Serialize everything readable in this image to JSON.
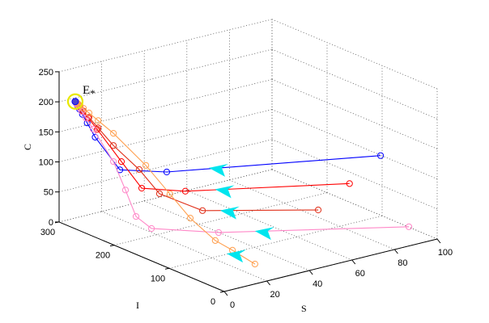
{
  "chart_data": {
    "type": "line3d",
    "title": "",
    "xlabel": "S",
    "ylabel": "I",
    "zlabel": "C",
    "xlim": [
      0,
      100
    ],
    "ylim": [
      0,
      300
    ],
    "zlim": [
      0,
      250
    ],
    "xticks": [
      "0",
      "20",
      "40",
      "60",
      "80",
      "100"
    ],
    "yticks": [
      "0",
      "100",
      "200",
      "300"
    ],
    "zticks": [
      "0",
      "50",
      "100",
      "150",
      "200",
      "250"
    ],
    "grid": true,
    "equilibrium": {
      "label": "E",
      "subscript": "*",
      "S": 5,
      "I": 290,
      "C": 200,
      "color": "#e8e800"
    },
    "arrow_color": "#00e5ee",
    "series": [
      {
        "name": "trajectory-blue",
        "color": "#0000ff",
        "points": [
          [
            76,
            10,
            156
          ],
          [
            6.6,
            130,
            143
          ],
          [
            2.7,
            200,
            123
          ],
          [
            4,
            250,
            157
          ]
        ]
      },
      {
        "name": "trajectory-red",
        "color": "#ff0000",
        "points": [
          [
            64,
            20,
            116
          ],
          [
            2.4,
            80,
            134
          ],
          [
            2.6,
            160,
            108
          ],
          [
            6,
            210,
            130
          ],
          [
            5,
            250,
            169
          ]
        ]
      },
      {
        "name": "trajectory-darkred",
        "color": "#e0301a",
        "points": [
          [
            48,
            15,
            88
          ],
          [
            2.7,
            50,
            113
          ],
          [
            0.6,
            120,
            116
          ],
          [
            4,
            170,
            134
          ],
          [
            4.8,
            220,
            154
          ]
        ]
      },
      {
        "name": "trajectory-pink",
        "color": "#ff88c8",
        "points": [
          [
            88,
            5,
            29
          ],
          [
            7.7,
            40,
            76
          ],
          [
            4.6,
            150,
            43
          ],
          [
            5.1,
            180,
            51
          ],
          [
            7.9,
            210,
            81
          ],
          [
            10,
            240,
            115
          ],
          [
            8.2,
            270,
            159
          ]
        ]
      },
      {
        "name": "trajectory-orange",
        "color": "#ffa050",
        "points": [
          [
            17,
            10,
            27
          ],
          [
            11.6,
            30,
            47
          ],
          [
            8.7,
            50,
            58
          ],
          [
            7.3,
            90,
            81
          ],
          [
            8.1,
            130,
            105
          ],
          [
            9.7,
            180,
            132
          ],
          [
            10,
            240,
            162
          ]
        ]
      }
    ]
  }
}
